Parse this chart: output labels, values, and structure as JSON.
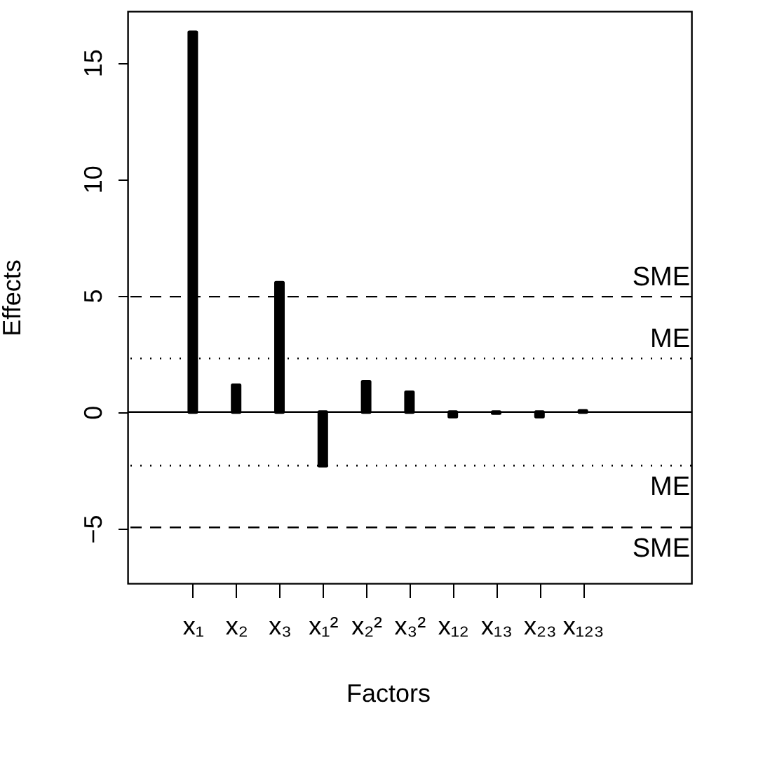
{
  "chart_data": {
    "type": "bar",
    "xlabel": "Factors",
    "ylabel": "Effects",
    "categories": [
      "x₁",
      "x₂",
      "x₃",
      "x₁²",
      "x₂²",
      "x₃²",
      "x₁₂",
      "x₁₃",
      "x₂₃",
      "x₁₂₃"
    ],
    "values": [
      16.3,
      1.15,
      5.55,
      -2.3,
      1.3,
      0.85,
      -0.2,
      -0.05,
      -0.2,
      0.05
    ],
    "color": "#000000",
    "ylim": [
      -7.35,
      17.2
    ],
    "yticks": [
      -5,
      0,
      5,
      10,
      15
    ],
    "grid": false,
    "ref_lines": [
      {
        "axis": "y",
        "value": 4.95,
        "label": "SME",
        "line_style": "dashed"
      },
      {
        "axis": "y",
        "value": 2.3,
        "label": "ME",
        "line_style": "dotted"
      },
      {
        "axis": "y",
        "value": 0,
        "label": null,
        "line_style": "solid"
      },
      {
        "axis": "y",
        "value": -2.3,
        "label": "ME",
        "line_style": "dotted"
      },
      {
        "axis": "y",
        "value": -4.95,
        "label": "SME",
        "line_style": "dashed"
      }
    ]
  }
}
